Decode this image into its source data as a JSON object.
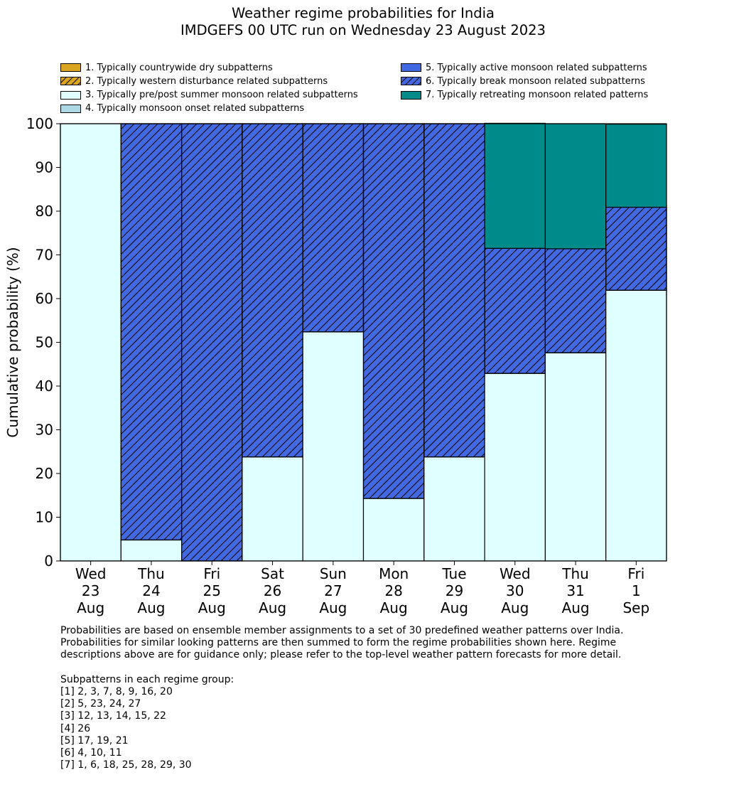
{
  "title_lines": [
    "Weather regime probabilities for India",
    "IMDGEFS 00 UTC run on Wednesday 23 August 2023"
  ],
  "chart_data": {
    "type": "bar",
    "stacked": true,
    "ylabel": "Cumulative probability (%)",
    "ylim": [
      0,
      100
    ],
    "yticks": [
      0,
      10,
      20,
      30,
      40,
      50,
      60,
      70,
      80,
      90,
      100
    ],
    "categories": [
      [
        "Wed",
        "23",
        "Aug"
      ],
      [
        "Thu",
        "24",
        "Aug"
      ],
      [
        "Fri",
        "25",
        "Aug"
      ],
      [
        "Sat",
        "26",
        "Aug"
      ],
      [
        "Sun",
        "27",
        "Aug"
      ],
      [
        "Mon",
        "28",
        "Aug"
      ],
      [
        "Tue",
        "29",
        "Aug"
      ],
      [
        "Wed",
        "30",
        "Aug"
      ],
      [
        "Thu",
        "31",
        "Aug"
      ],
      [
        "Fri",
        "1",
        "Sep"
      ]
    ],
    "legend_placement": "top",
    "series": [
      {
        "name": "1. Typically countrywide dry subpatterns",
        "color": "#DAA520",
        "hatch": false,
        "values": [
          0,
          0,
          0,
          0,
          0,
          0,
          0,
          0,
          0,
          0
        ]
      },
      {
        "name": "2. Typically western disturbance related subpatterns",
        "color": "#DAA520",
        "hatch": true,
        "values": [
          0,
          0,
          0,
          0,
          0,
          0,
          0,
          0,
          0,
          0
        ]
      },
      {
        "name": "3. Typically pre/post summer monsoon related subpatterns",
        "color": "#E0FFFF",
        "hatch": false,
        "values": [
          100,
          4.8,
          0,
          23.8,
          52.4,
          14.3,
          23.8,
          42.9,
          47.6,
          61.9
        ]
      },
      {
        "name": "4. Typically monsoon onset related subpatterns",
        "color": "#ADD8E6",
        "hatch": false,
        "values": [
          0,
          0,
          0,
          0,
          0,
          0,
          0,
          0,
          0,
          0
        ]
      },
      {
        "name": "5. Typically active monsoon related subpatterns",
        "color": "#4169E1",
        "hatch": false,
        "values": [
          0,
          0,
          0,
          0,
          0,
          0,
          0,
          0,
          0,
          0
        ]
      },
      {
        "name": "6. Typically break monsoon related subpatterns",
        "color": "#4169E1",
        "hatch": true,
        "values": [
          0,
          95.2,
          100,
          76.2,
          47.6,
          85.7,
          76.2,
          28.6,
          23.8,
          19.0
        ]
      },
      {
        "name": "7. Typically retreating monsoon related patterns",
        "color": "#008B8B",
        "hatch": false,
        "values": [
          0,
          0,
          0,
          0,
          0,
          0,
          0,
          28.6,
          28.6,
          19.0
        ]
      }
    ]
  },
  "notes": {
    "paragraph": [
      "Probabilities are based on ensemble member assignments to a set of 30 predefined weather patterns over India.",
      "Probabilities for similar looking patterns are then summed to form the regime probabilities shown here. Regime",
      "descriptions above are for guidance only; please refer to the top-level weather pattern forecasts for more detail."
    ],
    "subpatterns_heading": "Subpatterns in each regime group:",
    "subpatterns": [
      "[1] 2, 3, 7, 8, 9, 16, 20",
      "[2] 5, 23, 24, 27",
      "[3] 12, 13, 14, 15, 22",
      "[4] 26",
      "[5] 17, 19, 21",
      "[6] 4, 10, 11",
      "[7] 1, 6, 18, 25, 28, 29, 30"
    ]
  }
}
